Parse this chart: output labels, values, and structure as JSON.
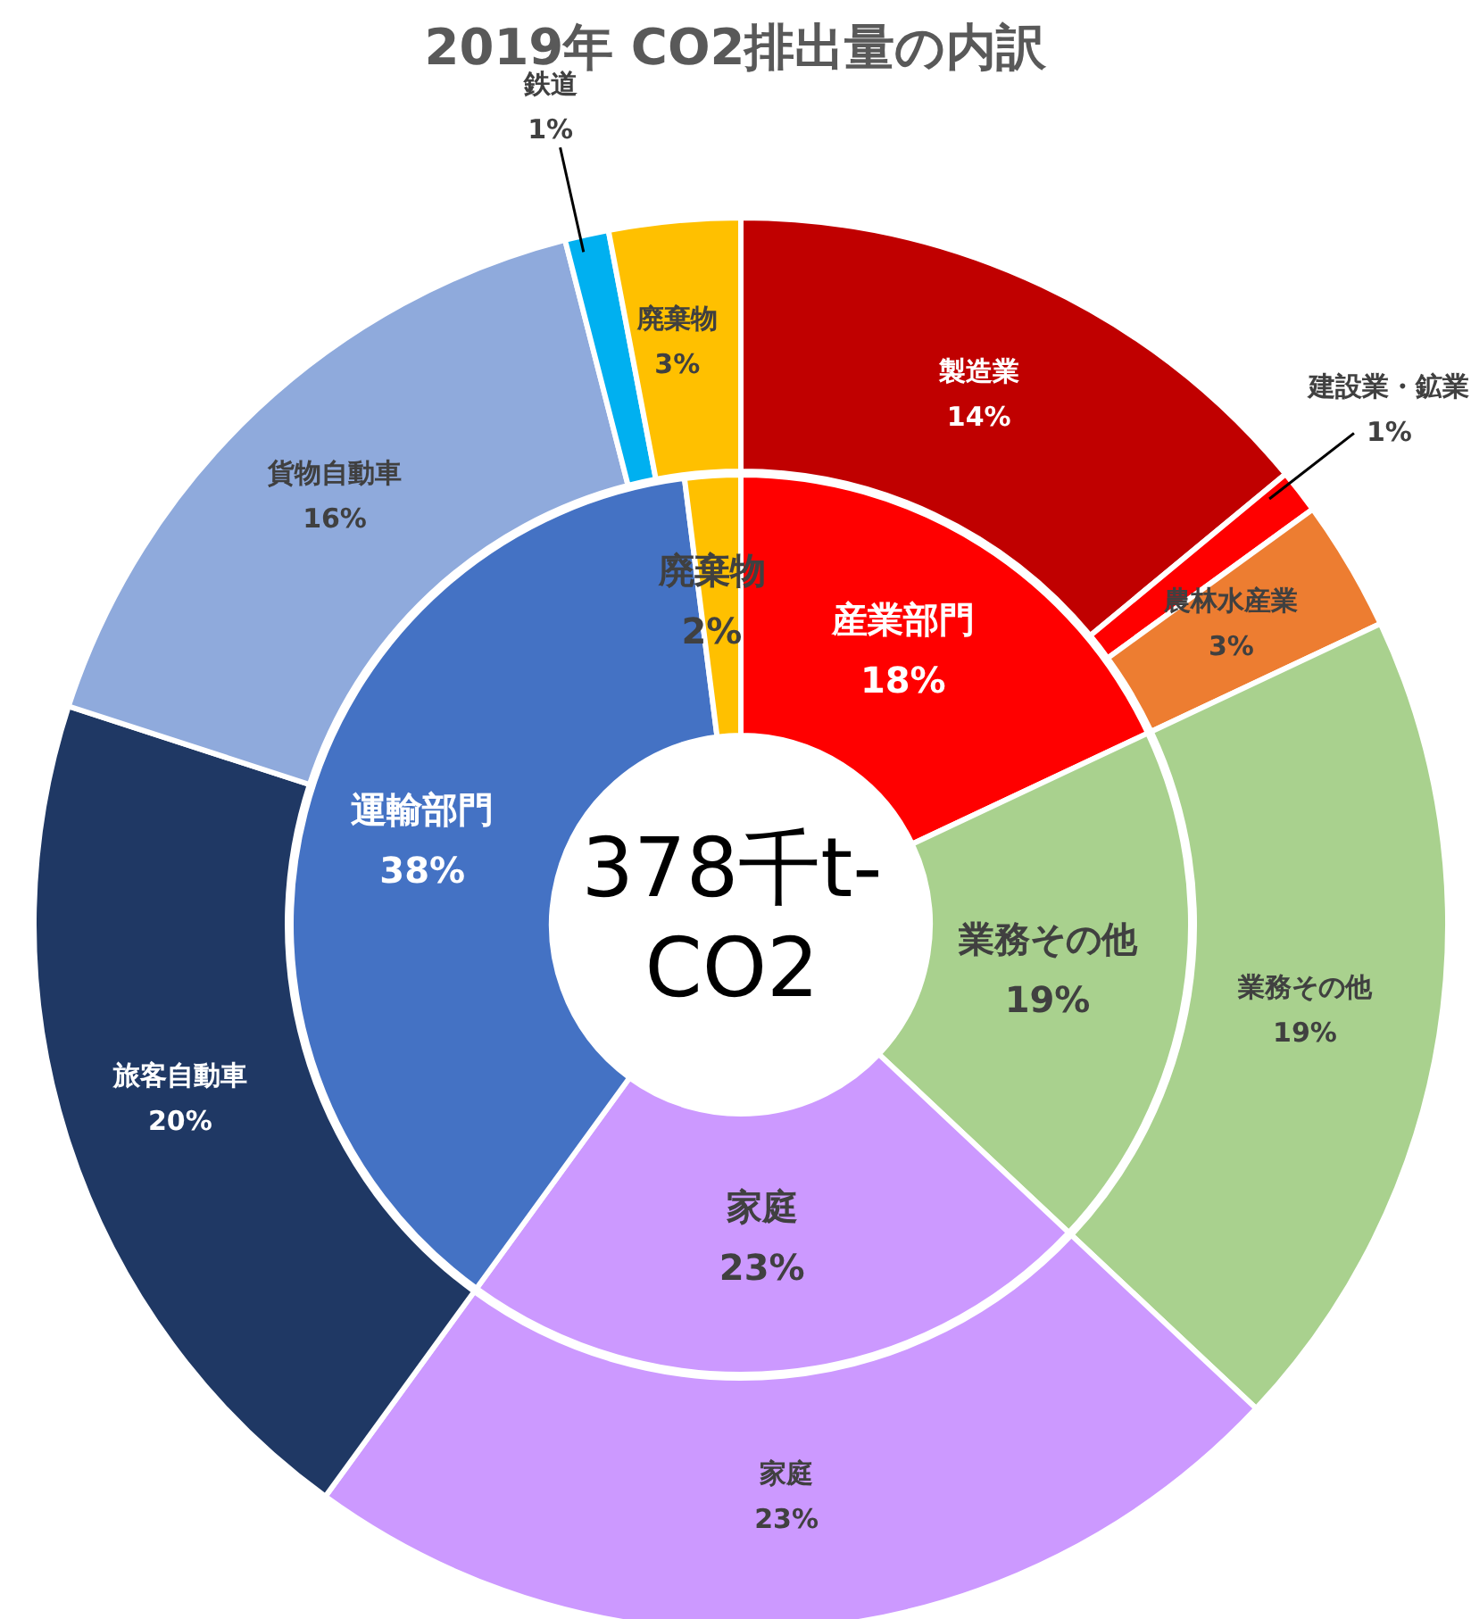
{
  "chart_data": [
    {
      "type": "donut",
      "title": "2019年 CO2排出量の内訳",
      "annotations": [
        "378千t-CO2"
      ],
      "categories": [
        "産業部門",
        "業務その他",
        "家庭",
        "運輸部門",
        "廃棄物"
      ],
      "values": [
        18,
        19,
        23,
        38,
        2
      ],
      "value_labels": [
        "18%",
        "19%",
        "23%",
        "38%",
        "2%"
      ],
      "colors": [
        "#ff0000",
        "#a9d18e",
        "#cc99ff",
        "#4472c4",
        "#ffc000"
      ]
    },
    {
      "type": "donut",
      "categories": [
        "製造業",
        "建設業・鉱業",
        "農林水産業",
        "業務その他",
        "家庭",
        "旅客自動車",
        "貨物自動車",
        "鉄道",
        "廃棄物"
      ],
      "values": [
        14,
        1,
        3,
        19,
        23,
        20,
        16,
        1,
        3
      ],
      "value_labels": [
        "14%",
        "1%",
        "3%",
        "19%",
        "23%",
        "20%",
        "16%",
        "1%",
        "3%"
      ],
      "colors": [
        "#c00000",
        "#ff0000",
        "#ed7d31",
        "#a9d18e",
        "#cc99ff",
        "#1f3864",
        "#8faadc",
        "#00b0f0",
        "#ffc000"
      ]
    }
  ]
}
